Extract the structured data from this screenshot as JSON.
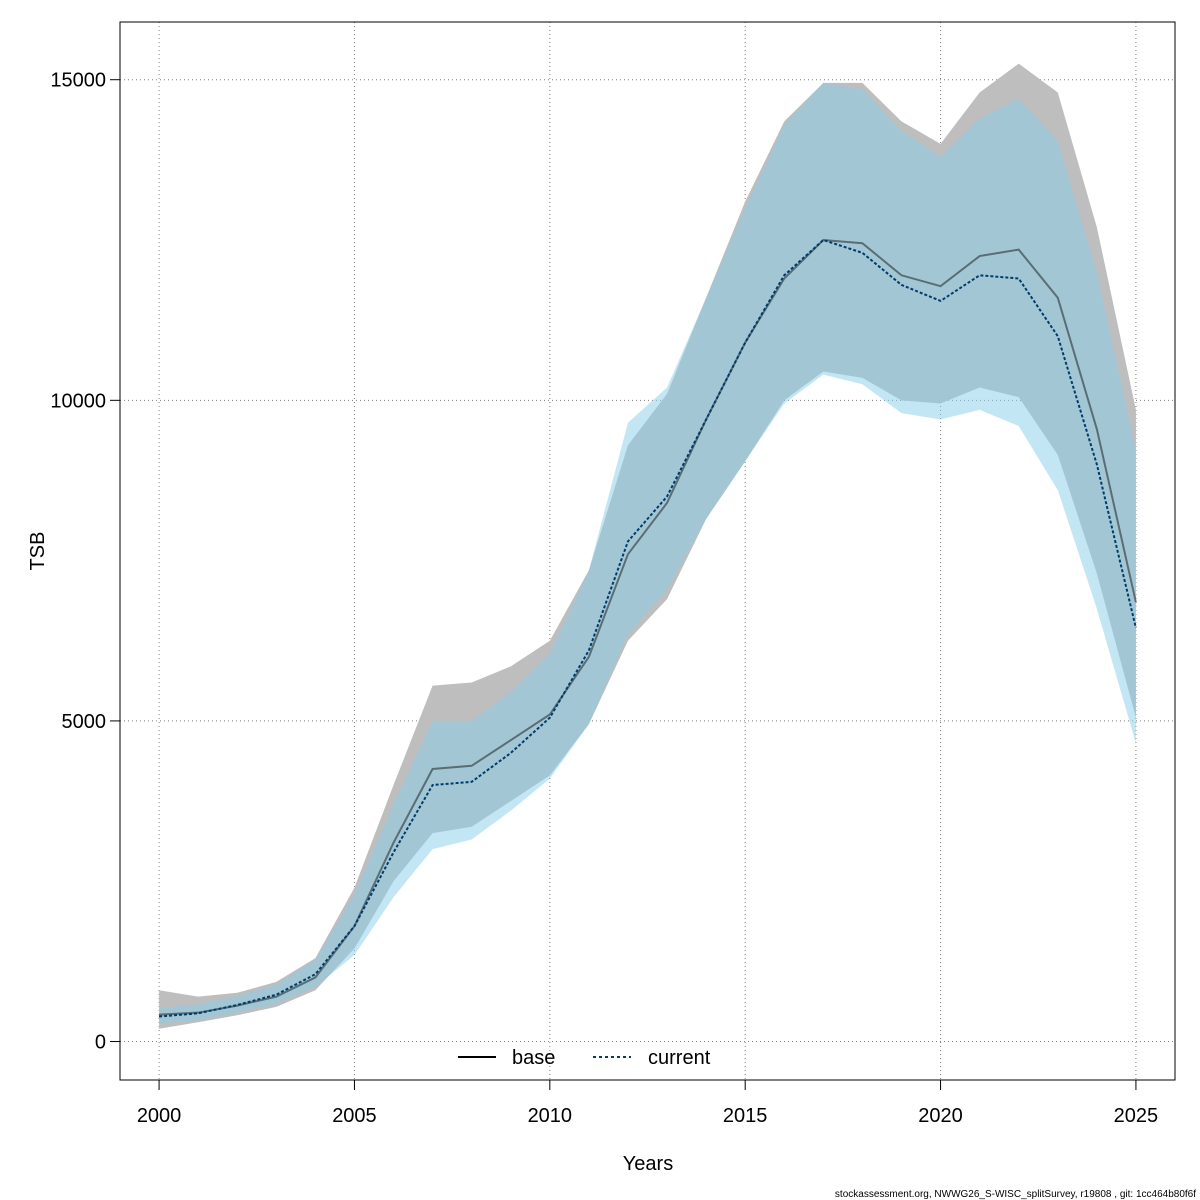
{
  "chart_data": {
    "type": "line",
    "xlabel": "Years",
    "ylabel": "TSB",
    "xlim": [
      1999,
      2026
    ],
    "ylim": [
      -600,
      15900
    ],
    "x_ticks": [
      2000,
      2005,
      2010,
      2015,
      2020,
      2025
    ],
    "y_ticks": [
      0,
      5000,
      10000,
      15000
    ],
    "grid": true,
    "legend_position": "bottom-center",
    "x": [
      2000,
      2001,
      2002,
      2003,
      2004,
      2005,
      2006,
      2007,
      2008,
      2009,
      2010,
      2011,
      2012,
      2013,
      2014,
      2015,
      2016,
      2017,
      2018,
      2019,
      2020,
      2021,
      2022,
      2023,
      2024,
      2025
    ],
    "series": [
      {
        "name": "base",
        "line_style": "solid",
        "line_color": "#000000",
        "band_color": "#bebebe",
        "values": [
          420,
          450,
          560,
          700,
          1000,
          1800,
          3100,
          4250,
          4300,
          4700,
          5100,
          6000,
          7600,
          8400,
          9700,
          10900,
          11900,
          12500,
          12450,
          11950,
          11780,
          12250,
          12350,
          11600,
          9550,
          6850
        ],
        "lower": [
          200,
          300,
          410,
          540,
          800,
          1450,
          2500,
          3250,
          3350,
          3750,
          4150,
          4950,
          6250,
          6900,
          8150,
          9050,
          10000,
          10450,
          10350,
          10000,
          9950,
          10200,
          10050,
          9150,
          7300,
          5050
        ],
        "upper": [
          800,
          700,
          760,
          930,
          1300,
          2400,
          4000,
          5550,
          5600,
          5850,
          6250,
          7350,
          9300,
          10100,
          11600,
          13100,
          14350,
          14950,
          14950,
          14350,
          14000,
          14800,
          15250,
          14800,
          12700,
          9850
        ]
      },
      {
        "name": "current",
        "line_style": "dotted",
        "line_color": "#003c6b",
        "band_color": "#87ceeb",
        "values": [
          390,
          440,
          570,
          730,
          1050,
          1800,
          2950,
          4000,
          4050,
          4500,
          5050,
          6100,
          7800,
          8500,
          9700,
          10900,
          11950,
          12500,
          12300,
          11800,
          11550,
          11950,
          11900,
          11000,
          9000,
          6450
        ],
        "lower": [
          280,
          330,
          450,
          590,
          850,
          1350,
          2250,
          3000,
          3150,
          3600,
          4100,
          4950,
          6350,
          7050,
          8150,
          9050,
          9950,
          10400,
          10250,
          9800,
          9700,
          9850,
          9600,
          8600,
          6750,
          4650
        ],
        "upper": [
          520,
          580,
          710,
          890,
          1280,
          2300,
          3700,
          5000,
          5000,
          5450,
          6050,
          7350,
          9650,
          10200,
          11600,
          13000,
          14300,
          14950,
          14850,
          14200,
          13800,
          14400,
          14700,
          14050,
          12000,
          9200
        ]
      }
    ],
    "footnote": "stockassessment.org, NWWG26_S-WISC_splitSurvey, r19808 , git: 1cc464b80f6f"
  }
}
